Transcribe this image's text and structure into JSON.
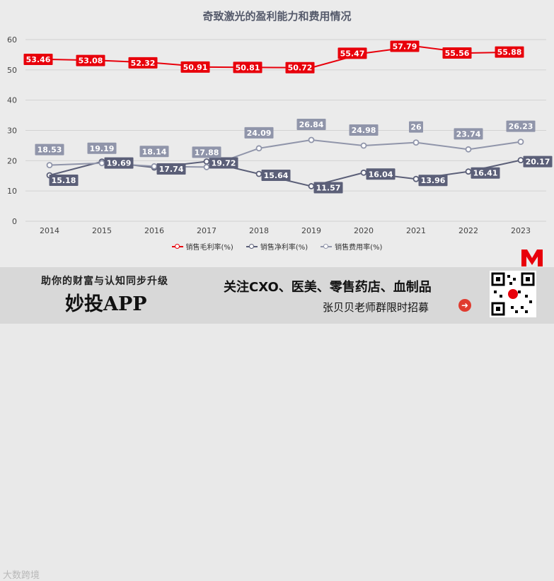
{
  "chart_data": {
    "type": "line",
    "title": "奇致激光的盈利能力和费用情况",
    "categories": [
      "2014",
      "2015",
      "2016",
      "2017",
      "2018",
      "2019",
      "2020",
      "2021",
      "2022",
      "2023"
    ],
    "y_ticks": [
      "0",
      "10",
      "20",
      "30",
      "40",
      "50",
      "60"
    ],
    "ylim": [
      0,
      60
    ],
    "grid": "horizontal",
    "legend_position": "bottom",
    "series": [
      {
        "name": "销售毛利率(%)",
        "color": "#e8000b",
        "labels": [
          "53.46",
          "53.08",
          "52.32",
          "50.91",
          "50.81",
          "50.72",
          "55.47",
          "57.79",
          "55.56",
          "55.88"
        ],
        "values": [
          53.46,
          53.08,
          52.32,
          50.91,
          50.81,
          50.72,
          55.47,
          57.79,
          55.56,
          55.88
        ]
      },
      {
        "name": "销售净利率(%)",
        "color": "#5b5f78",
        "labels": [
          "15.18",
          "19.69",
          "17.74",
          "19.72",
          "15.64",
          "11.57",
          "16.04",
          "13.96",
          "16.41",
          "20.17"
        ],
        "values": [
          15.18,
          19.69,
          17.74,
          19.72,
          15.64,
          11.57,
          16.04,
          13.96,
          16.41,
          20.17
        ]
      },
      {
        "name": "销售费用率(%)",
        "color": "#9095aa",
        "labels": [
          "18.53",
          "19.19",
          "18.14",
          "17.88",
          "24.09",
          "26.84",
          "24.98",
          "26",
          "23.74",
          "26.23"
        ],
        "values": [
          18.53,
          19.19,
          18.14,
          17.88,
          24.09,
          26.84,
          24.98,
          26,
          23.74,
          26.23
        ]
      }
    ]
  },
  "banner": {
    "slogan": "助你的财富与认知同步升级",
    "app_name": "妙投APP",
    "headline": "关注CXO、医美、零售药店、血制品",
    "recruit": "张贝贝老师群限时招募",
    "watermark": "大数跨境",
    "arrow_icon": "arrow-right-icon",
    "qr_icon": "qr-code-icon",
    "logo_icon": "m-logo-icon"
  }
}
